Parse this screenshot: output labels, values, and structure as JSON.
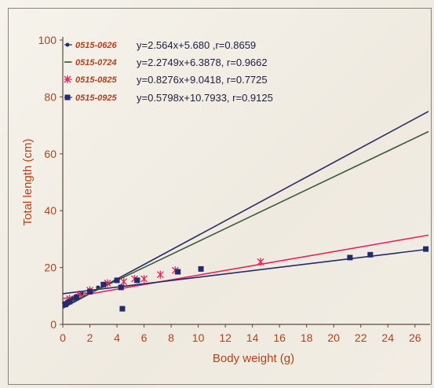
{
  "chart_data": {
    "type": "scatter",
    "xlabel": "Body weight (g)",
    "ylabel": "Total length (cm)",
    "xlim": [
      0,
      27
    ],
    "ylim": [
      0,
      100
    ],
    "xticks": [
      0,
      2,
      4,
      6,
      8,
      10,
      12,
      14,
      16,
      18,
      20,
      22,
      24,
      26
    ],
    "yticks": [
      0,
      20,
      40,
      60,
      80,
      100
    ],
    "legend_position": "top-left",
    "grid": false,
    "series": [
      {
        "name": "0515-0626",
        "equation": "y=2.564x+5.680 ,r=0.8659",
        "slope": 2.564,
        "intercept": 5.68,
        "color": "#2b2a63",
        "marker": "dot",
        "points": [
          [
            0.1,
            7.5
          ],
          [
            0.3,
            8.0
          ],
          [
            0.5,
            8.5
          ],
          [
            0.7,
            9.2
          ],
          [
            1.0,
            10.0
          ],
          [
            1.4,
            11.0
          ],
          [
            2.0,
            12.0
          ],
          [
            2.6,
            13.0
          ]
        ]
      },
      {
        "name": "0515-0724",
        "equation": "y=2.2749x+6.3878, r=0.9662",
        "slope": 2.2749,
        "intercept": 6.3878,
        "color": "#3c5a3c",
        "marker": "dash",
        "points": [
          [
            0.2,
            7.0
          ],
          [
            0.6,
            8.5
          ],
          [
            1.0,
            9.5
          ],
          [
            1.8,
            11.0
          ],
          [
            2.8,
            12.5
          ],
          [
            3.4,
            14.5
          ]
        ]
      },
      {
        "name": "0515-0825",
        "equation": "y=0.8276x+9.0418, r=0.7725",
        "slope": 0.8276,
        "intercept": 9.0418,
        "color": "#e0245e",
        "marker": "star",
        "points": [
          [
            0.5,
            9.0
          ],
          [
            1.2,
            10.5
          ],
          [
            2.0,
            12.0
          ],
          [
            3.3,
            14.5
          ],
          [
            4.5,
            15.0
          ],
          [
            5.3,
            16.0
          ],
          [
            6.0,
            16.0
          ],
          [
            7.2,
            17.5
          ],
          [
            8.3,
            19.0
          ],
          [
            14.6,
            22.0
          ]
        ]
      },
      {
        "name": "0515-0925",
        "equation": "y=0.5798x+10.7933, r=0.9125",
        "slope": 0.5798,
        "intercept": 10.7933,
        "color": "#232a6e",
        "marker": "square",
        "points": [
          [
            0.2,
            7.0
          ],
          [
            0.5,
            8.0
          ],
          [
            1.0,
            9.5
          ],
          [
            2.0,
            11.5
          ],
          [
            3.0,
            14.0
          ],
          [
            4.0,
            15.5
          ],
          [
            4.3,
            13.0
          ],
          [
            4.4,
            5.5
          ],
          [
            5.5,
            15.5
          ],
          [
            8.5,
            18.5
          ],
          [
            10.2,
            19.5
          ],
          [
            21.2,
            23.5
          ],
          [
            22.7,
            24.5
          ],
          [
            26.8,
            26.5
          ]
        ]
      }
    ]
  }
}
